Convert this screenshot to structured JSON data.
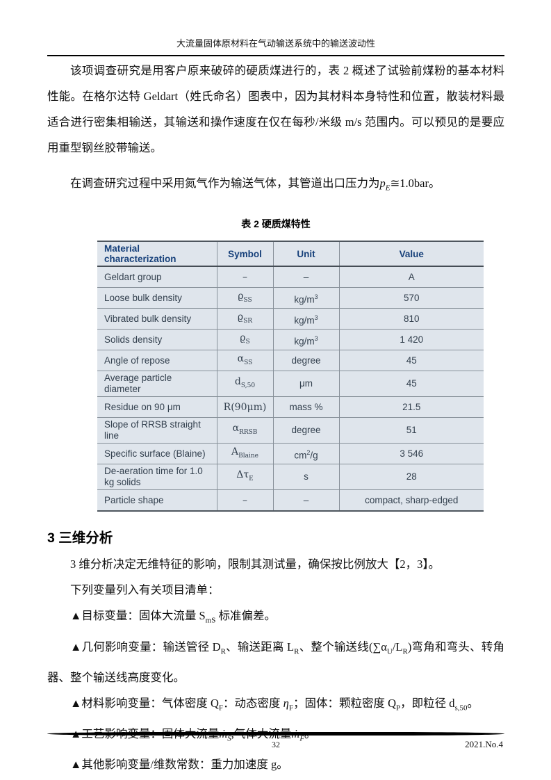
{
  "colors": {
    "table_bg": "#dfe5ec",
    "table_header_text": "#16407a",
    "table_text": "#33404e",
    "table_border": "#879099"
  },
  "header": {
    "title": "大流量固体原材料在气动输送系统中的输送波动性"
  },
  "body": {
    "p1": "该项调查研究是用客户原来破碎的硬质煤进行的，表 2 概述了试验前煤粉的基本材料性能。在格尔达特 Geldart（姓氏命名）图表中，因为其材料本身特性和位置，散装材料最适合进行密集相输送，其输送和操作速度在仅在每秒/米级 m/s 范围内。可以预见的是要应用重型钢丝胶带输送。",
    "p2_runs": [
      {
        "t": "在调查研究过程中采用氮气作为输送气体，其管道出口压力为"
      },
      {
        "t": "p",
        "s": "i"
      },
      {
        "t": "E",
        "s": "isub"
      },
      {
        "t": "≅1.0bar。"
      }
    ]
  },
  "table": {
    "caption": "表 2  硬质煤特性",
    "headers": [
      "Material characterization",
      "Symbol",
      "Unit",
      "Value"
    ],
    "rows": [
      {
        "name": "Geldart group",
        "symbol": [
          {
            "t": "–"
          }
        ],
        "unit": [
          {
            "t": "–"
          }
        ],
        "value": "A"
      },
      {
        "name": "Loose bulk density",
        "symbol": [
          {
            "t": "ϱ"
          },
          {
            "t": "SS",
            "s": "sub"
          }
        ],
        "unit": [
          {
            "t": "kg/m"
          },
          {
            "t": "3",
            "s": "sup"
          }
        ],
        "value": "570"
      },
      {
        "name": "Vibrated bulk density",
        "symbol": [
          {
            "t": "ϱ"
          },
          {
            "t": "SR",
            "s": "sub"
          }
        ],
        "unit": [
          {
            "t": "kg/m"
          },
          {
            "t": "3",
            "s": "sup"
          }
        ],
        "value": "810"
      },
      {
        "name": "Solids density",
        "symbol": [
          {
            "t": "ϱ"
          },
          {
            "t": "S",
            "s": "sub"
          }
        ],
        "unit": [
          {
            "t": "kg/m"
          },
          {
            "t": "3",
            "s": "sup"
          }
        ],
        "value": "1 420"
      },
      {
        "name": "Angle of repose",
        "symbol": [
          {
            "t": "α"
          },
          {
            "t": "SS",
            "s": "sub"
          }
        ],
        "unit": [
          {
            "t": "degree"
          }
        ],
        "value": "45"
      },
      {
        "name": "Average particle diameter",
        "symbol": [
          {
            "t": "d"
          },
          {
            "t": "S,50",
            "s": "sub"
          }
        ],
        "unit": [
          {
            "t": "μm"
          }
        ],
        "value": "45"
      },
      {
        "name": "Residue on 90 μm",
        "symbol": [
          {
            "t": "R(90μm)"
          }
        ],
        "unit": [
          {
            "t": "mass %"
          }
        ],
        "value": "21.5"
      },
      {
        "name": "Slope of RRSB straight line",
        "symbol": [
          {
            "t": "α"
          },
          {
            "t": "RRSB",
            "s": "sub"
          }
        ],
        "unit": [
          {
            "t": "degree"
          }
        ],
        "value": "51"
      },
      {
        "name": "Specific surface (Blaine)",
        "symbol": [
          {
            "t": "A"
          },
          {
            "t": "Blaine",
            "s": "sub"
          }
        ],
        "unit": [
          {
            "t": "cm"
          },
          {
            "t": "2",
            "s": "sup"
          },
          {
            "t": "/g"
          }
        ],
        "value": "3 546"
      },
      {
        "name": "De-aeration time for 1.0 kg solids",
        "symbol": [
          {
            "t": "Δτ"
          },
          {
            "t": "E",
            "s": "sub"
          }
        ],
        "unit": [
          {
            "t": "s"
          }
        ],
        "value": "28"
      },
      {
        "name": "Particle shape",
        "symbol": [
          {
            "t": "–"
          }
        ],
        "unit": [
          {
            "t": "–"
          }
        ],
        "value": "compact, sharp-edged"
      }
    ]
  },
  "section3": {
    "heading": "3 三维分析",
    "p1": "3 维分析决定无维特征的影响，限制其测试量，确保按比例放大【2，3】。",
    "p2": "下列变量列入有关项目清单：",
    "bullets": [
      {
        "runs": [
          {
            "t": "▲目标变量：固体大流量 S"
          },
          {
            "t": "mS",
            "s": "sub"
          },
          {
            "t": " 标准偏差。"
          }
        ]
      },
      {
        "runs": [
          {
            "t": "▲几何影响变量：输送管径 D"
          },
          {
            "t": "R",
            "s": "sub"
          },
          {
            "t": "、输送距离 L"
          },
          {
            "t": "R",
            "s": "sub"
          },
          {
            "t": "、整个输送线(∑α"
          },
          {
            "t": "U",
            "s": "sub"
          },
          {
            "t": "/L"
          },
          {
            "t": "R",
            "s": "sub"
          },
          {
            "t": ")弯角和弯头、转角器、整个输送线高度变化。"
          }
        ]
      },
      {
        "runs": [
          {
            "t": "▲材料影响变量：气体密度 Q"
          },
          {
            "t": "F",
            "s": "sub"
          },
          {
            "t": "：动态密度 "
          },
          {
            "t": "η",
            "s": "i"
          },
          {
            "t": "F",
            "s": "sub"
          },
          {
            "t": "；固体：颗粒密度 Q"
          },
          {
            "t": "P",
            "s": "sub"
          },
          {
            "t": "，即粒径 d"
          },
          {
            "t": "s,50",
            "s": "sub"
          },
          {
            "t": "。"
          }
        ]
      },
      {
        "runs": [
          {
            "t": "▲工艺影响变量：固体大流量"
          },
          {
            "t": "ṁ",
            "s": "i"
          },
          {
            "t": "S",
            "s": "isub"
          },
          {
            "t": ",气体大流量"
          },
          {
            "t": "ṁ",
            "s": "i"
          },
          {
            "t": "F",
            "s": "isub"
          },
          {
            "t": "。"
          }
        ]
      },
      {
        "runs": [
          {
            "t": "▲其他影响变量/维数常数：重力加速度 g。"
          }
        ]
      }
    ]
  },
  "footer": {
    "page_number": "32",
    "issue": "2021.No.4"
  }
}
